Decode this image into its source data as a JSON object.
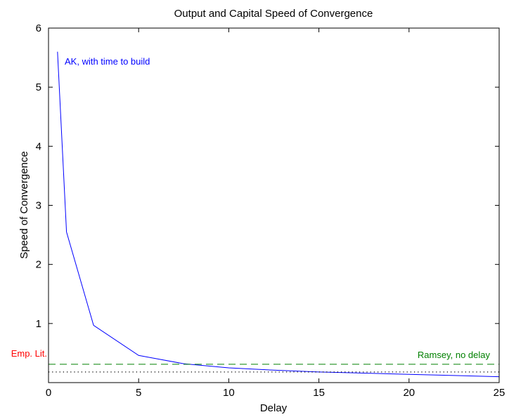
{
  "chart_data": {
    "type": "line",
    "title": "Output and Capital Speed of Convergence",
    "xlabel": "Delay",
    "ylabel": "Speed of Convergence",
    "xlim": [
      0,
      25
    ],
    "ylim": [
      0,
      6
    ],
    "xticks": [
      0,
      5,
      10,
      15,
      20,
      25
    ],
    "yticks": [
      1,
      2,
      3,
      4,
      5,
      6
    ],
    "grid": false,
    "series": [
      {
        "name": "AK, with time to build",
        "color": "#0000ff",
        "style": "solid",
        "x": [
          0.5,
          1,
          2.5,
          5,
          7.5,
          10,
          12.5,
          15,
          17.5,
          20,
          22.5,
          25
        ],
        "y": [
          5.6,
          2.55,
          0.97,
          0.46,
          0.32,
          0.25,
          0.21,
          0.18,
          0.16,
          0.14,
          0.12,
          0.1
        ]
      },
      {
        "name": "Ramsey, no delay",
        "color": "#008000",
        "style": "dashed",
        "x": [
          0,
          25
        ],
        "y": [
          0.31,
          0.31
        ]
      },
      {
        "name": "Emp. Lit.",
        "color": "#000000",
        "style": "dotted",
        "x": [
          0,
          25
        ],
        "y": [
          0.18,
          0.18
        ]
      }
    ],
    "annotations": [
      {
        "text": "AK, with time to build",
        "color": "#0000ff"
      },
      {
        "text": "Ramsey, no delay",
        "color": "#008000"
      },
      {
        "text": "Emp. Lit.",
        "color": "#ff0000"
      }
    ]
  }
}
